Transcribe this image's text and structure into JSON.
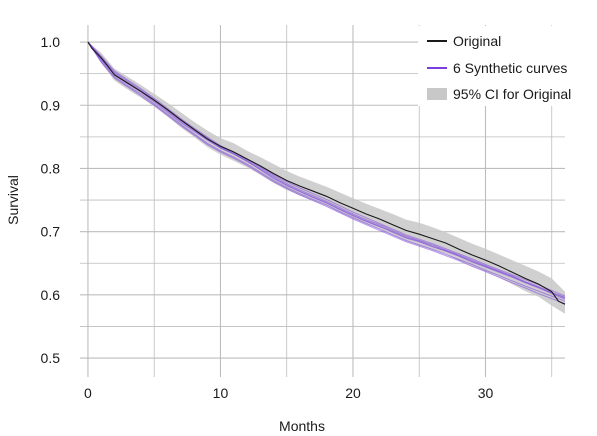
{
  "chart_data": {
    "type": "line",
    "title": "",
    "xlabel": "Months",
    "ylabel": "Survival",
    "xlim": [
      -0.6,
      36
    ],
    "ylim": [
      0.47,
      1.027
    ],
    "x_ticks": [
      "0",
      "10",
      "20",
      "30"
    ],
    "x_tick_values": [
      0,
      10,
      20,
      30
    ],
    "y_ticks": [
      "1.0",
      "0.9",
      "0.8",
      "0.7",
      "0.6",
      "0.5"
    ],
    "y_tick_values": [
      1.0,
      0.9,
      0.8,
      0.7,
      0.6,
      0.5
    ],
    "grid": true,
    "legend_position": "top-right",
    "colors": {
      "original": "#1a1a1a",
      "synthetic": "#7b3fe0",
      "ci": "#c8c8c8",
      "grid": "#bdbdbd"
    },
    "legend": [
      {
        "label": "Original",
        "kind": "line",
        "color": "#1a1a1a"
      },
      {
        "label": "6 Synthetic curves",
        "kind": "line",
        "color": "#7b3fe0"
      },
      {
        "label": "95% CI for Original",
        "kind": "band",
        "color": "#c8c8c8"
      }
    ],
    "original": {
      "x": [
        0,
        0.3,
        1,
        1.5,
        2,
        3,
        4,
        5,
        6,
        7,
        8,
        9,
        10,
        11,
        12,
        13,
        14,
        15,
        16,
        17,
        18,
        19,
        20,
        21,
        22,
        23,
        24,
        25,
        26,
        27,
        28,
        29,
        30,
        31,
        32,
        33,
        34,
        35,
        35.5,
        36
      ],
      "y": [
        1.0,
        0.99,
        0.975,
        0.962,
        0.948,
        0.935,
        0.922,
        0.908,
        0.893,
        0.877,
        0.862,
        0.847,
        0.835,
        0.826,
        0.815,
        0.804,
        0.792,
        0.781,
        0.772,
        0.764,
        0.756,
        0.746,
        0.737,
        0.728,
        0.72,
        0.711,
        0.702,
        0.696,
        0.689,
        0.682,
        0.672,
        0.663,
        0.655,
        0.646,
        0.636,
        0.626,
        0.617,
        0.605,
        0.59,
        0.585
      ]
    },
    "ci_band": {
      "x": [
        0,
        1,
        2,
        3,
        4,
        5,
        6,
        7,
        8,
        9,
        10,
        11,
        12,
        13,
        14,
        15,
        16,
        17,
        18,
        19,
        20,
        21,
        22,
        23,
        24,
        25,
        26,
        27,
        28,
        29,
        30,
        31,
        32,
        33,
        34,
        35,
        36
      ],
      "upper": [
        1.0,
        0.983,
        0.958,
        0.945,
        0.932,
        0.918,
        0.904,
        0.889,
        0.874,
        0.86,
        0.848,
        0.84,
        0.828,
        0.818,
        0.807,
        0.796,
        0.787,
        0.779,
        0.771,
        0.762,
        0.753,
        0.744,
        0.736,
        0.728,
        0.719,
        0.714,
        0.707,
        0.699,
        0.69,
        0.681,
        0.673,
        0.664,
        0.655,
        0.646,
        0.637,
        0.626,
        0.605
      ],
      "lower": [
        1.0,
        0.967,
        0.939,
        0.925,
        0.912,
        0.898,
        0.882,
        0.865,
        0.85,
        0.834,
        0.822,
        0.812,
        0.802,
        0.79,
        0.777,
        0.766,
        0.757,
        0.749,
        0.741,
        0.73,
        0.721,
        0.712,
        0.704,
        0.694,
        0.685,
        0.678,
        0.671,
        0.665,
        0.654,
        0.645,
        0.637,
        0.628,
        0.617,
        0.606,
        0.597,
        0.583,
        0.57
      ]
    },
    "synthetic_series": [
      {
        "x": [
          0,
          1,
          2,
          3,
          4,
          5,
          6,
          7,
          8,
          9,
          10,
          11,
          12,
          13,
          14,
          15,
          16,
          17,
          18,
          19,
          20,
          21,
          22,
          23,
          24,
          25,
          26,
          27,
          28,
          29,
          30,
          31,
          32,
          33,
          34,
          35,
          36
        ],
        "y": [
          1.0,
          0.972,
          0.948,
          0.934,
          0.921,
          0.905,
          0.889,
          0.873,
          0.859,
          0.845,
          0.832,
          0.823,
          0.812,
          0.798,
          0.784,
          0.773,
          0.763,
          0.754,
          0.745,
          0.735,
          0.725,
          0.716,
          0.708,
          0.699,
          0.69,
          0.684,
          0.676,
          0.669,
          0.661,
          0.652,
          0.644,
          0.636,
          0.628,
          0.619,
          0.611,
          0.602,
          0.593
        ]
      },
      {
        "x": [
          0,
          1,
          2,
          3,
          4,
          5,
          6,
          7,
          8,
          9,
          10,
          11,
          12,
          13,
          14,
          15,
          16,
          17,
          18,
          19,
          20,
          21,
          22,
          23,
          24,
          25,
          26,
          27,
          28,
          29,
          30,
          31,
          32,
          33,
          34,
          35,
          36
        ],
        "y": [
          1.0,
          0.976,
          0.952,
          0.938,
          0.924,
          0.909,
          0.893,
          0.877,
          0.862,
          0.848,
          0.834,
          0.824,
          0.813,
          0.801,
          0.788,
          0.776,
          0.766,
          0.757,
          0.748,
          0.738,
          0.728,
          0.719,
          0.711,
          0.702,
          0.693,
          0.686,
          0.679,
          0.671,
          0.663,
          0.655,
          0.646,
          0.638,
          0.63,
          0.621,
          0.613,
          0.604,
          0.596
        ]
      },
      {
        "x": [
          0,
          1,
          2,
          3,
          4,
          5,
          6,
          7,
          8,
          9,
          10,
          11,
          12,
          13,
          14,
          15,
          16,
          17,
          18,
          19,
          20,
          21,
          22,
          23,
          24,
          25,
          26,
          27,
          28,
          29,
          30,
          31,
          32,
          33,
          34,
          35,
          36
        ],
        "y": [
          1.0,
          0.97,
          0.945,
          0.931,
          0.918,
          0.902,
          0.886,
          0.87,
          0.855,
          0.84,
          0.828,
          0.818,
          0.807,
          0.794,
          0.781,
          0.77,
          0.76,
          0.751,
          0.742,
          0.732,
          0.722,
          0.713,
          0.704,
          0.695,
          0.686,
          0.679,
          0.672,
          0.664,
          0.656,
          0.648,
          0.639,
          0.631,
          0.622,
          0.614,
          0.606,
          0.598,
          0.59
        ]
      },
      {
        "x": [
          0,
          1,
          2,
          3,
          4,
          5,
          6,
          7,
          8,
          9,
          10,
          11,
          12,
          13,
          14,
          15,
          16,
          17,
          18,
          19,
          20,
          21,
          22,
          23,
          24,
          25,
          26,
          27,
          28,
          29,
          30,
          31,
          32,
          33,
          34,
          35,
          36
        ],
        "y": [
          1.0,
          0.974,
          0.95,
          0.936,
          0.922,
          0.907,
          0.891,
          0.875,
          0.86,
          0.846,
          0.833,
          0.823,
          0.811,
          0.799,
          0.786,
          0.774,
          0.764,
          0.755,
          0.746,
          0.736,
          0.726,
          0.717,
          0.709,
          0.7,
          0.691,
          0.685,
          0.677,
          0.67,
          0.662,
          0.653,
          0.645,
          0.637,
          0.629,
          0.62,
          0.612,
          0.603,
          0.595
        ]
      },
      {
        "x": [
          0,
          1,
          2,
          3,
          4,
          5,
          6,
          7,
          8,
          9,
          10,
          11,
          12,
          13,
          14,
          15,
          16,
          17,
          18,
          19,
          20,
          21,
          22,
          23,
          24,
          25,
          26,
          27,
          28,
          29,
          30,
          31,
          32,
          33,
          34,
          35,
          36
        ],
        "y": [
          1.0,
          0.968,
          0.943,
          0.929,
          0.915,
          0.9,
          0.884,
          0.868,
          0.853,
          0.838,
          0.826,
          0.816,
          0.805,
          0.792,
          0.779,
          0.768,
          0.758,
          0.749,
          0.74,
          0.73,
          0.72,
          0.711,
          0.702,
          0.693,
          0.684,
          0.677,
          0.67,
          0.662,
          0.654,
          0.645,
          0.637,
          0.628,
          0.619,
          0.611,
          0.602,
          0.594,
          0.586
        ]
      },
      {
        "x": [
          0,
          1,
          2,
          3,
          4,
          5,
          6,
          7,
          8,
          9,
          10,
          11,
          12,
          13,
          14,
          15,
          16,
          17,
          18,
          19,
          20,
          21,
          22,
          23,
          24,
          25,
          26,
          27,
          28,
          29,
          30,
          31,
          32,
          33,
          34,
          35,
          36
        ],
        "y": [
          1.0,
          0.978,
          0.954,
          0.94,
          0.926,
          0.911,
          0.895,
          0.879,
          0.864,
          0.85,
          0.836,
          0.826,
          0.815,
          0.803,
          0.79,
          0.779,
          0.769,
          0.76,
          0.751,
          0.741,
          0.731,
          0.722,
          0.713,
          0.704,
          0.695,
          0.688,
          0.681,
          0.673,
          0.665,
          0.657,
          0.648,
          0.64,
          0.632,
          0.624,
          0.616,
          0.607,
          0.598
        ]
      }
    ]
  }
}
